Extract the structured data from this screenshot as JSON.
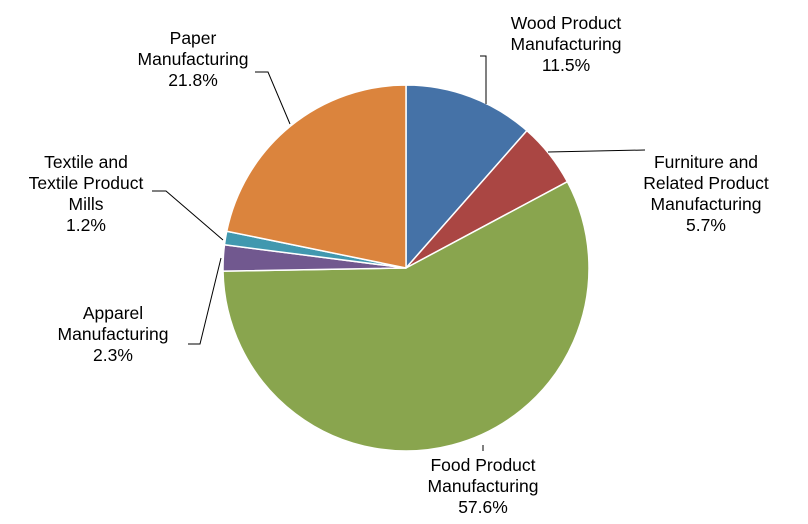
{
  "chart_data": {
    "type": "pie",
    "title": "",
    "unit": "%",
    "slices": [
      {
        "label": [
          "Wood Product",
          "Manufacturing"
        ],
        "value": 11.5,
        "value_label": "11.5%",
        "color": "#4572A7"
      },
      {
        "label": [
          "Furniture and",
          "Related Product",
          "Manufacturing"
        ],
        "value": 5.7,
        "value_label": "5.7%",
        "color": "#AA4643"
      },
      {
        "label": [
          "Food Product",
          "Manufacturing"
        ],
        "value": 57.6,
        "value_label": "57.6%",
        "color": "#89A54E"
      },
      {
        "label": [
          "Apparel",
          "Manufacturing"
        ],
        "value": 2.3,
        "value_label": "2.3%",
        "color": "#71588F"
      },
      {
        "label": [
          "Textile and",
          "Textile Product",
          "Mills"
        ],
        "value": 1.2,
        "value_label": "1.2%",
        "color": "#4198AF"
      },
      {
        "label": [
          "Paper",
          "Manufacturing"
        ],
        "value": 21.8,
        "value_label": "21.8%",
        "color": "#DB843D"
      }
    ],
    "start_angle": "12 o'clock",
    "direction": "clockwise",
    "legend": "none",
    "labels": "outside with leader lines"
  }
}
